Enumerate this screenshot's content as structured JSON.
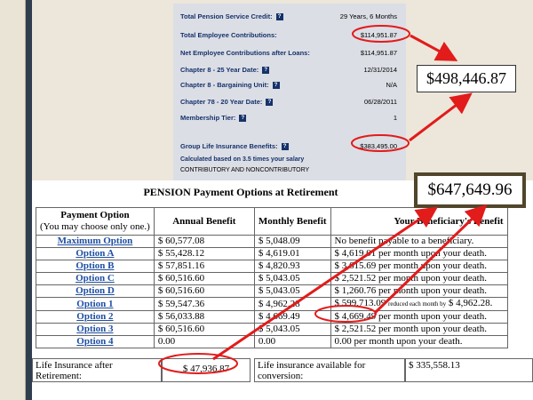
{
  "info_panel": {
    "rows": [
      {
        "label": "Total Pension Service Credit:",
        "value": "29 Years, 6 Months",
        "help": true
      },
      {
        "label": "Total Employee Contributions:",
        "value": "$114,951.87",
        "help": false
      },
      {
        "label": "Net Employee Contributions after Loans:",
        "value": "$114,951.87",
        "help": false
      },
      {
        "label": "Chapter 8 - 25 Year Date:",
        "value": "12/31/2014",
        "help": true
      },
      {
        "label": "Chapter 8 - Bargaining Unit:",
        "value": "N/A",
        "help": true
      },
      {
        "label": "Chapter 78 - 20 Year Date:",
        "value": "06/28/2011",
        "help": true
      },
      {
        "label": "Membership Tier:",
        "value": "1",
        "help": true
      },
      {
        "label": "Group Life Insurance Benefits:",
        "value": "$383,495.00",
        "help": true
      }
    ],
    "help_glyph": "?",
    "calc_note": "Calculated based on 3.5 times your salary",
    "contrib_note": "CONTRIBUTORY AND NONCONTRIBUTORY"
  },
  "callouts": {
    "top": "$498,446.87",
    "bottom": "$647,649.96"
  },
  "table": {
    "title": "PENSION Payment Options at Retirement",
    "headers": {
      "option": "Payment Option",
      "option_sub": "(You may choose only one.)",
      "annual": "Annual Benefit",
      "monthly": "Monthly Benefit",
      "beneficiary": "Your Beneficiary's Benefit"
    },
    "rows": [
      {
        "option": "Maximum Option",
        "annual": "$ 60,577.08",
        "monthly": "$ 5,048.09",
        "benefit": "No benefit payable to a beneficiary."
      },
      {
        "option": "Option A",
        "annual": "$ 55,428.12",
        "monthly": "$ 4,619.01",
        "benefit": "$ 4,619.01 per month upon your death."
      },
      {
        "option": "Option B",
        "annual": "$ 57,851.16",
        "monthly": "$ 4,820.93",
        "benefit": "$ 3,615.69 per month upon your death."
      },
      {
        "option": "Option C",
        "annual": "$ 60,516.60",
        "monthly": "$ 5,043.05",
        "benefit": "$ 2,521.52 per month upon your death."
      },
      {
        "option": "Option D",
        "annual": "$ 60,516.60",
        "monthly": "$ 5,043.05",
        "benefit": "$ 1,260.76 per month upon your death."
      },
      {
        "option": "Option 1",
        "annual": "$ 59,547.36",
        "monthly": "$ 4,962.28",
        "benefit": "$ 599,713.09",
        "benefit_note": "reduced each month by",
        "benefit_tail": "$ 4,962.28."
      },
      {
        "option": "Option 2",
        "annual": "$ 56,033.88",
        "monthly": "$ 4,669.49",
        "benefit": "$ 4,669.49 per month upon your death."
      },
      {
        "option": "Option 3",
        "annual": "$ 60,516.60",
        "monthly": "$ 5,043.05",
        "benefit": "$ 2,521.52 per month upon your death."
      },
      {
        "option": "Option 4",
        "annual": "0.00",
        "monthly": "0.00",
        "benefit": "0.00 per month upon your death."
      }
    ],
    "bottom": {
      "life_label": "Life Insurance after Retirement:",
      "life_value": "$ 47,936.87",
      "conv_label": "Life insurance available for conversion:",
      "conv_value": "$ 335,558.13"
    }
  },
  "colors": {
    "accent_red": "#e21b1b",
    "label_blue": "#15326b",
    "link_blue": "#1f4fa3"
  }
}
